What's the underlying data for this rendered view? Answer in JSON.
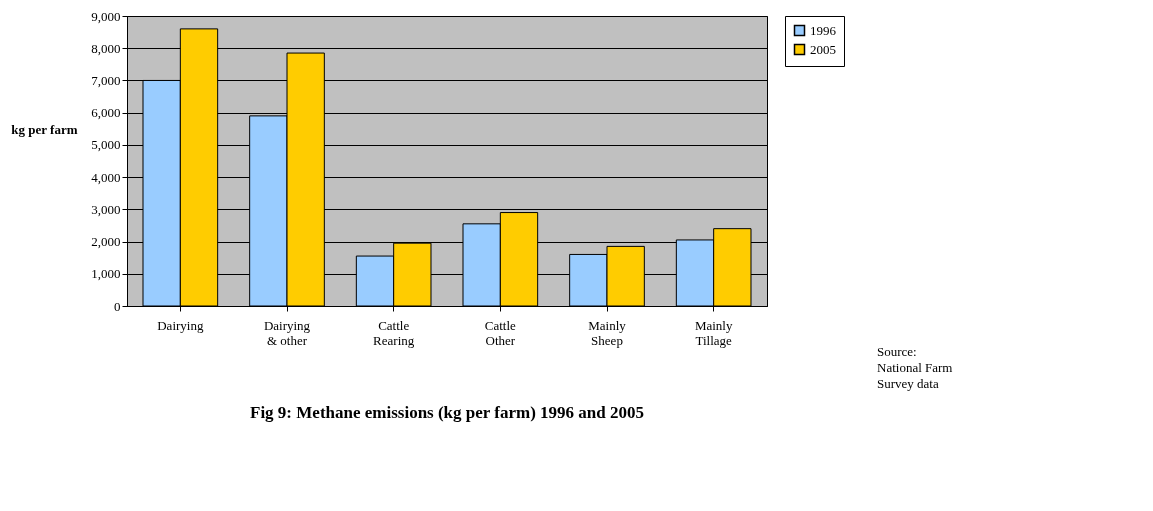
{
  "chart_data": {
    "type": "bar",
    "title": "Fig 9: Methane emissions (kg per farm) 1996 and 2005",
    "ylabel": "kg per farm",
    "categories": [
      "Dairying",
      "Dairying\n& other",
      "Cattle\nRearing",
      "Cattle\nOther",
      "Mainly\nSheep",
      "Mainly\nTillage"
    ],
    "series": [
      {
        "name": "1996",
        "color": "#99ccff",
        "values": [
          7000,
          5900,
          1550,
          2550,
          1600,
          2050
        ]
      },
      {
        "name": "2005",
        "color": "#ffcc00",
        "values": [
          8600,
          7850,
          1950,
          2900,
          1850,
          2400
        ]
      }
    ],
    "ylim": [
      0,
      9000
    ],
    "yticks": [
      0,
      {
        "value": 1000,
        "label": "1,000"
      },
      {
        "value": 2000,
        "label": "2,000"
      },
      {
        "value": 3000,
        "label": "3,000"
      },
      {
        "value": 4000,
        "label": "4,000"
      },
      {
        "value": 5000,
        "label": "5,000"
      },
      {
        "value": 6000,
        "label": "6,000"
      },
      {
        "value": 7000,
        "label": "7,000"
      },
      {
        "value": 8000,
        "label": "8,000"
      },
      {
        "value": 9000,
        "label": "9,000"
      }
    ],
    "grid": "y",
    "legend": "right",
    "annotations": [
      "Source:\nNational Farm\nSurvey data"
    ]
  }
}
